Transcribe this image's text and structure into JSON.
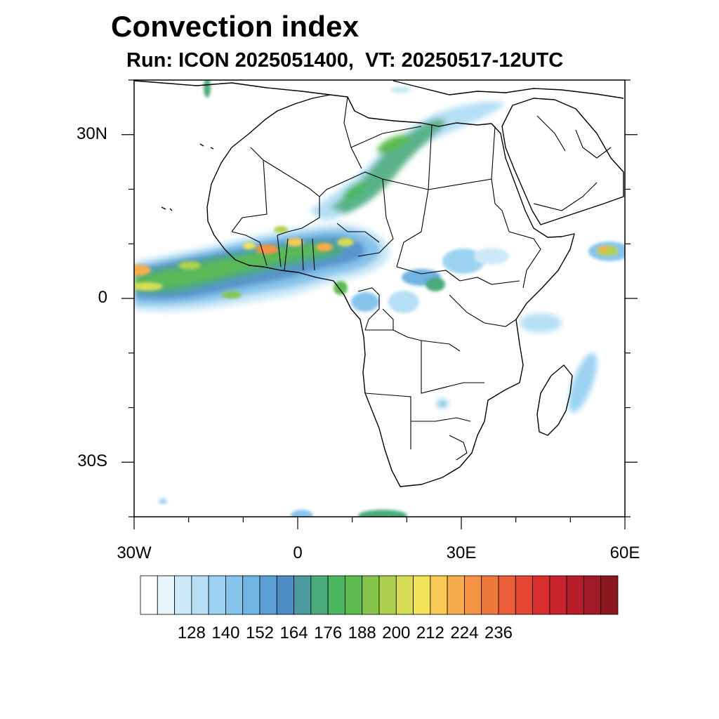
{
  "title": "Convection index",
  "subtitle": "Run: ICON 2025051400,  VT: 20250517-12UTC",
  "map": {
    "extent": {
      "lon_min": -30,
      "lon_max": 60,
      "lat_min": -40,
      "lat_max": 40
    },
    "lat_labels": [
      {
        "lat": 30,
        "text": "30N"
      },
      {
        "lat": 0,
        "text": "0"
      },
      {
        "lat": -30,
        "text": "30S"
      }
    ],
    "lon_labels": [
      {
        "lon": -30,
        "text": "30W"
      },
      {
        "lon": 0,
        "text": "0"
      },
      {
        "lon": 30,
        "text": "30E"
      },
      {
        "lon": 60,
        "text": "60E"
      }
    ],
    "features": [
      {
        "name": "west-african-convection-band",
        "lon_range": [
          -30,
          15
        ],
        "lat_range": [
          0,
          12
        ]
      },
      {
        "name": "sahara-diagonal-band",
        "lon_range": [
          5,
          30
        ],
        "lat_range": [
          18,
          33
        ]
      },
      {
        "name": "arabian-sea-convection",
        "lon_range": [
          52,
          60
        ],
        "lat_range": [
          7,
          11
        ]
      },
      {
        "name": "madagascar-channel-convection",
        "lon_range": [
          45,
          55
        ],
        "lat_range": [
          -25,
          -10
        ]
      }
    ]
  },
  "colorbar": {
    "colors": [
      "#ffffff",
      "#e8f4fc",
      "#cde9f7",
      "#b5dff5",
      "#9cd3f2",
      "#86c4ec",
      "#6fb4e3",
      "#5b9fd6",
      "#4e8cc6",
      "#4a9aa0",
      "#4aaa7a",
      "#4bb760",
      "#5dbb50",
      "#86c54b",
      "#aed04e",
      "#d7de55",
      "#f2e35a",
      "#f8c954",
      "#f7ad4c",
      "#f49344",
      "#ef783d",
      "#ea5f37",
      "#e44633",
      "#d82f2e",
      "#c8222c",
      "#b51d2a",
      "#9f1a26",
      "#8a1620"
    ],
    "labels": [
      "128",
      "140",
      "152",
      "164",
      "176",
      "188",
      "200",
      "212",
      "224",
      "236"
    ],
    "label_positions": [
      3,
      5,
      7,
      9,
      11,
      13,
      15,
      17,
      19,
      21
    ]
  }
}
